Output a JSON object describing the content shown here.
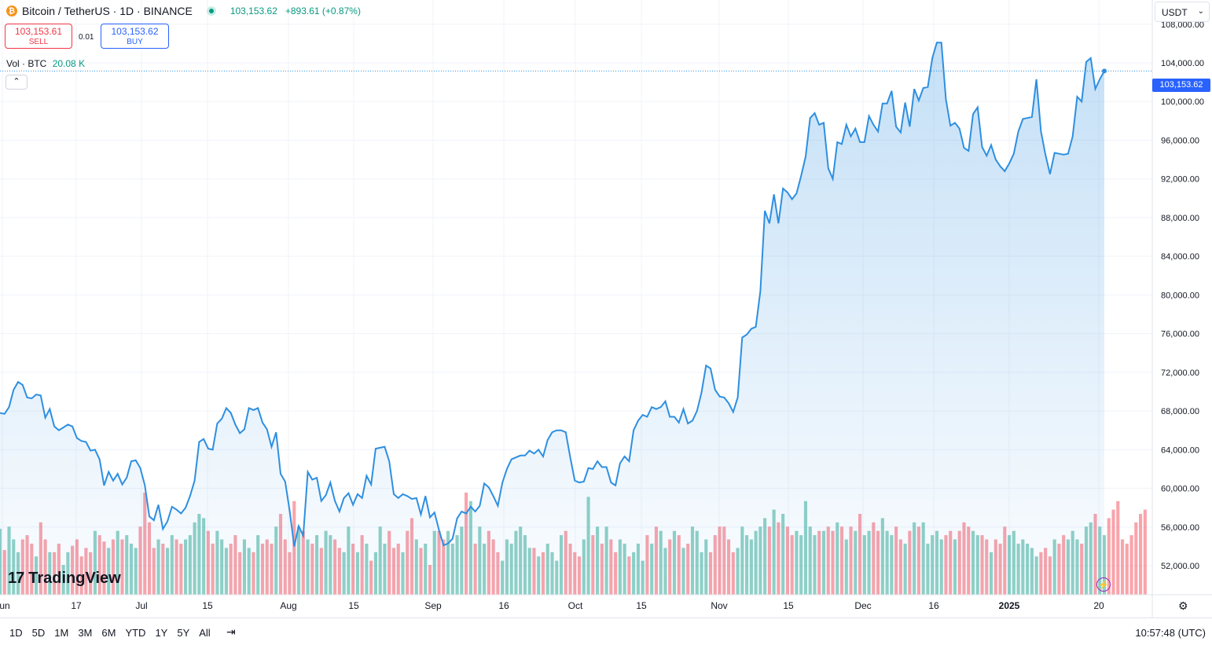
{
  "header": {
    "symbol": "Bitcoin / TetherUS · 1D · BINANCE",
    "coin_glyph": "₿",
    "price": "103,153.62",
    "change": "+893.61 (+0.87%)"
  },
  "trade": {
    "sell_price": "103,153.61",
    "sell_label": "SELL",
    "spread": "0.01",
    "buy_price": "103,153.62",
    "buy_label": "BUY"
  },
  "volume_legend": {
    "label": "Vol · BTC",
    "value": "20.08 K"
  },
  "collapse_glyph": "⌃",
  "currency": {
    "value": "USDT",
    "chevron": "⌄"
  },
  "price_tag": "103,153.62",
  "logo": {
    "mark": "17",
    "text": "TradingView"
  },
  "flash_glyph": "⚡",
  "settings_glyph": "⚙",
  "bottom_bar": {
    "ranges": [
      "1D",
      "5D",
      "1M",
      "3M",
      "6M",
      "YTD",
      "1Y",
      "5Y",
      "All"
    ],
    "calendar_glyph": "⇥",
    "clock": "10:57:48 (UTC)"
  },
  "colors": {
    "line": "#2e8fe0",
    "up": "#089981",
    "down": "#f23645",
    "accent": "#2962ff"
  },
  "chart_data": {
    "type": "area",
    "x_ticks": [
      "Jun",
      "17",
      "Jul",
      "15",
      "Aug",
      "15",
      "Sep",
      "16",
      "Oct",
      "15",
      "Nov",
      "15",
      "Dec",
      "16",
      "2025",
      "20"
    ],
    "y_ticks": [
      "108,000.00",
      "104,000.00",
      "100,000.00",
      "96,000.00",
      "92,000.00",
      "88,000.00",
      "84,000.00",
      "80,000.00",
      "76,000.00",
      "72,000.00",
      "68,000.00",
      "64,000.00",
      "60,000.00",
      "56,000.00",
      "52,000.00"
    ],
    "ylim": [
      49000,
      110500
    ],
    "last_price": 103153.62,
    "series": [
      {
        "name": "BTCUSDT",
        "start_date": "2024-06-04",
        "values": [
          67800,
          67700,
          68400,
          70200,
          71000,
          70700,
          69400,
          69300,
          69700,
          69600,
          67300,
          68200,
          66400,
          66000,
          66300,
          66600,
          66400,
          65200,
          64900,
          64800,
          63900,
          64000,
          63000,
          60300,
          61700,
          60800,
          61500,
          60400,
          61100,
          62800,
          62900,
          62100,
          60300,
          57100,
          56700,
          58300,
          55800,
          56600,
          58100,
          57800,
          57400,
          58000,
          59200,
          60800,
          64800,
          65100,
          64100,
          64000,
          66700,
          67200,
          68300,
          67800,
          66600,
          65700,
          66100,
          68300,
          68100,
          68300,
          66800,
          66100,
          64300,
          65800,
          61500,
          60700,
          57700,
          54000,
          56100,
          55100,
          61700,
          60900,
          61100,
          58700,
          59300,
          60600,
          58700,
          57600,
          59000,
          59500,
          58300,
          59400,
          59000,
          61300,
          60400,
          64100,
          64200,
          64300,
          62800,
          59400,
          59000,
          59400,
          59200,
          58900,
          59000,
          57300,
          59200,
          57000,
          57500,
          55700,
          54100,
          54300,
          54800,
          56900,
          57600,
          57400,
          58100,
          57600,
          58200,
          60500,
          60100,
          59200,
          58200,
          60600,
          62000,
          63000,
          63200,
          63400,
          63400,
          63900,
          63600,
          64000,
          63300,
          65000,
          65800,
          66000,
          66000,
          65800,
          63200,
          60800,
          60600,
          60700,
          62100,
          62000,
          62800,
          62200,
          62200,
          60600,
          60300,
          62600,
          63300,
          62800,
          66000,
          67000,
          67600,
          67400,
          68400,
          68200,
          68400,
          69000,
          67400,
          67400,
          66800,
          68200,
          66700,
          67000,
          68000,
          69900,
          72700,
          72400,
          70200,
          69500,
          69400,
          68800,
          67900,
          69400,
          75600,
          75900,
          76500,
          76700,
          80400,
          88700,
          87400,
          90400,
          87400,
          91000,
          90600,
          89900,
          90500,
          92300,
          94300,
          98300,
          98800,
          97600,
          97800,
          93100,
          92000,
          95800,
          95600,
          97600,
          96400,
          97200,
          95800,
          95800,
          98500,
          97600,
          96900,
          99800,
          99800,
          101100,
          97400,
          96800,
          99900,
          97400,
          101300,
          100100,
          101400,
          101500,
          104500,
          106100,
          106100,
          100200,
          97500,
          97800,
          97200,
          95200,
          94900,
          98700,
          99400,
          95300,
          94400,
          95500,
          94000,
          93300,
          92800,
          93600,
          94600,
          96900,
          98200,
          98300,
          98400,
          102300,
          96900,
          94500,
          92500,
          94700,
          94600,
          94500,
          94600,
          96400,
          100500,
          100000,
          104100,
          104500,
          101300,
          102300,
          103153
        ]
      }
    ],
    "volume": {
      "label": "Vol · BTC",
      "last": "20.08 K",
      "values": [
        1.55,
        1.05,
        1.6,
        1.3,
        1.0,
        1.3,
        1.4,
        1.2,
        0.9,
        1.7,
        1.3,
        1.0,
        1.0,
        1.2,
        0.7,
        1.0,
        1.15,
        1.3,
        0.9,
        1.1,
        1.0,
        1.5,
        1.4,
        1.25,
        1.1,
        1.3,
        1.5,
        1.3,
        1.4,
        1.2,
        1.1,
        1.6,
        2.4,
        1.7,
        1.1,
        1.3,
        1.2,
        1.1,
        1.4,
        1.3,
        1.2,
        1.3,
        1.4,
        1.7,
        1.9,
        1.8,
        1.5,
        1.2,
        1.5,
        1.3,
        1.1,
        1.2,
        1.4,
        1.0,
        1.3,
        1.1,
        1.0,
        1.4,
        1.2,
        1.3,
        1.2,
        1.6,
        1.9,
        1.3,
        1.0,
        2.2,
        1.6,
        1.5,
        1.3,
        1.2,
        1.4,
        1.1,
        1.5,
        1.4,
        1.3,
        1.1,
        1.0,
        1.6,
        1.2,
        1.0,
        1.4,
        1.2,
        0.8,
        1.0,
        1.6,
        1.2,
        1.5,
        1.1,
        1.2,
        1.0,
        1.5,
        1.8,
        1.3,
        1.1,
        1.2,
        0.7,
        1.5,
        1.5,
        1.3,
        1.5,
        1.2,
        1.4,
        1.6,
        2.4,
        2.2,
        1.2,
        1.6,
        1.2,
        1.5,
        1.3,
        1.0,
        0.8,
        1.3,
        1.2,
        1.5,
        1.6,
        1.4,
        1.1,
        1.1,
        0.9,
        1.0,
        1.2,
        1.0,
        0.8,
        1.4,
        1.5,
        1.2,
        1.0,
        0.9,
        1.3,
        2.3,
        1.4,
        1.6,
        1.2,
        1.6,
        1.3,
        1.0,
        1.3,
        1.2,
        0.9,
        1.0,
        1.2,
        0.8,
        1.4,
        1.2,
        1.6,
        1.5,
        1.1,
        1.3,
        1.5,
        1.4,
        1.1,
        1.2,
        1.6,
        1.5,
        1.0,
        1.3,
        1.0,
        1.4,
        1.6,
        1.6,
        1.3,
        1.0,
        1.1,
        1.6,
        1.4,
        1.3,
        1.5,
        1.6,
        1.8,
        1.6,
        2.0,
        1.7,
        1.9,
        1.6,
        1.4,
        1.5,
        1.4,
        2.2,
        1.6,
        1.4,
        1.5,
        1.5,
        1.6,
        1.5,
        1.7,
        1.6,
        1.3,
        1.6,
        1.5,
        1.9,
        1.4,
        1.5,
        1.7,
        1.5,
        1.8,
        1.5,
        1.4,
        1.6,
        1.3,
        1.2,
        1.5,
        1.7,
        1.6,
        1.7,
        1.2,
        1.4,
        1.5,
        1.3,
        1.4,
        1.5,
        1.3,
        1.5,
        1.7,
        1.6,
        1.5,
        1.4,
        1.4,
        1.3,
        1.0,
        1.3,
        1.2,
        1.6,
        1.4,
        1.5,
        1.2,
        1.3,
        1.2,
        1.1,
        0.9,
        1.0,
        1.1,
        0.9,
        1.3,
        1.2,
        1.4,
        1.3,
        1.5,
        1.3,
        1.2,
        1.6,
        1.7,
        1.9,
        1.6,
        1.4,
        1.8,
        2.0,
        2.2,
        1.3,
        1.2,
        1.4,
        1.7,
        1.9,
        2.0
      ]
    }
  }
}
